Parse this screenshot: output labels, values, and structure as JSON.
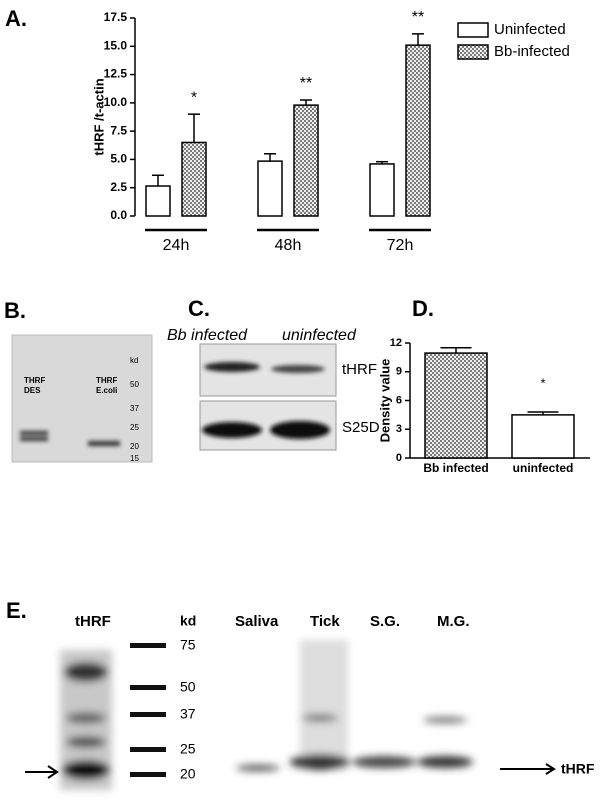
{
  "chart_data": [
    {
      "type": "bar",
      "panel_label": "A.",
      "ylabel": "tHRF /t-actin",
      "categories": [
        "24h",
        "48h",
        "72h"
      ],
      "series": [
        {
          "name": "Uninfected",
          "color": "#ffffff",
          "values": [
            2.65,
            4.85,
            4.6
          ],
          "errors": [
            0.95,
            0.65,
            0.2
          ]
        },
        {
          "name": "Bb-infected",
          "color": "#7a7a7a",
          "values": [
            6.5,
            9.8,
            15.1
          ],
          "errors": [
            2.5,
            0.45,
            1.0
          ]
        }
      ],
      "annotations": [
        {
          "text": "*",
          "category": "24h"
        },
        {
          "text": "**",
          "category": "48h"
        },
        {
          "text": "**",
          "category": "72h"
        }
      ],
      "ylim": [
        0,
        17.5
      ],
      "yticks": [
        {
          "value": 0,
          "label": "0.0"
        },
        2.5,
        {
          "value": 5,
          "label": "5.0"
        },
        7.5,
        {
          "value": 10,
          "label": "10.0"
        },
        12.5,
        {
          "value": 15,
          "label": "15.0"
        },
        17.5
      ],
      "legend": "upper right"
    },
    {
      "type": "bar",
      "panel_label": "D.",
      "ylabel": "Density value",
      "categories": [
        "Bb infected",
        "uninfected"
      ],
      "values": [
        10.95,
        4.5
      ],
      "errors": [
        0.55,
        0.3
      ],
      "colors": [
        "#7a7a7a",
        "#ffffff"
      ],
      "annotations": [
        {
          "text": "*",
          "category": "uninfected"
        }
      ],
      "ylim": [
        0,
        12
      ],
      "yticks": [
        0,
        3,
        6,
        9,
        12
      ]
    }
  ],
  "panel_b": {
    "label": "B.",
    "lanes": [
      [
        "THRF",
        "DES"
      ],
      [
        "THRF",
        "E.coli"
      ]
    ],
    "unit": "kd",
    "markers": [
      "50",
      "37",
      "25",
      "20",
      "15"
    ]
  },
  "panel_c": {
    "label": "C.",
    "lanes": [
      "Bb infected",
      "uninfected"
    ],
    "rows": [
      "tHRF",
      "S25D"
    ]
  },
  "panel_e": {
    "label": "E.",
    "ladder_lane": "tHRF",
    "unit": "kd",
    "markers": [
      "75",
      "50",
      "37",
      "25",
      "20"
    ],
    "lanes": [
      "Saliva",
      "Tick",
      "S.G.",
      "M.G."
    ],
    "band_label": "tHRF"
  }
}
